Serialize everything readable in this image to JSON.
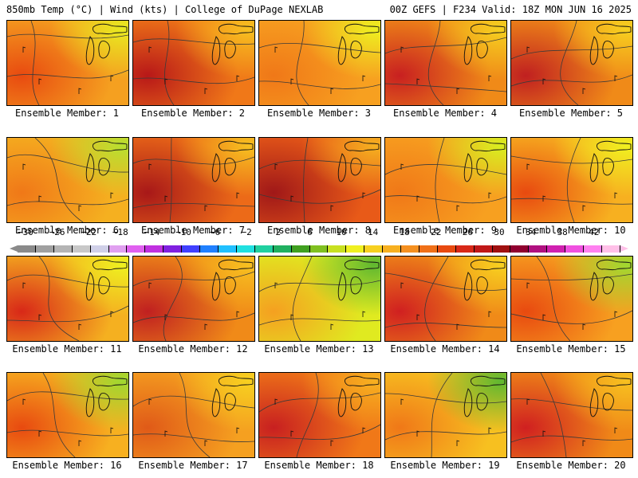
{
  "header": {
    "left": "850mb Temp (°C) | Wind (kts) | College of DuPage NEXLAB",
    "right": "00Z GEFS | F234 Valid: 18Z MON JUN 16 2025"
  },
  "panel_label_prefix": "Ensemble Member: ",
  "members": [
    {
      "label": "Ensemble Member: 1",
      "base": "#f5a020",
      "hot": "#e84a10",
      "cool": "#e8ea20"
    },
    {
      "label": "Ensemble Member: 2",
      "base": "#f07818",
      "hot": "#b81818",
      "cool": "#f7c020"
    },
    {
      "label": "Ensemble Member: 3",
      "base": "#f7a020",
      "hot": "#f07818",
      "cool": "#eef020"
    },
    {
      "label": "Ensemble Member: 4",
      "base": "#f08a18",
      "hot": "#c82020",
      "cool": "#f5d020"
    },
    {
      "label": "Ensemble Member: 5",
      "base": "#f08a18",
      "hot": "#c02020",
      "cool": "#f7d020"
    },
    {
      "label": "Ensemble Member: 6",
      "base": "#f5b020",
      "hot": "#f07818",
      "cool": "#b8e030"
    },
    {
      "label": "Ensemble Member: 7",
      "base": "#ec6a18",
      "hot": "#a81818",
      "cool": "#f7c020"
    },
    {
      "label": "Ensemble Member: 8",
      "base": "#e85a18",
      "hot": "#a01818",
      "cool": "#f5b020"
    },
    {
      "label": "Ensemble Member: 9",
      "base": "#f7a020",
      "hot": "#f07818",
      "cool": "#d8ee20"
    },
    {
      "label": "Ensemble Member: 10",
      "base": "#f7b020",
      "hot": "#e84a10",
      "cool": "#f0f020"
    },
    {
      "label": "Ensemble Member: 11",
      "base": "#f5b020",
      "hot": "#d82818",
      "cool": "#eef020"
    },
    {
      "label": "Ensemble Member: 12",
      "base": "#f08a18",
      "hot": "#c02020",
      "cool": "#f7c020"
    },
    {
      "label": "Ensemble Member: 13",
      "base": "#e0ea20",
      "hot": "#f5a020",
      "cool": "#60b830"
    },
    {
      "label": "Ensemble Member: 14",
      "base": "#f08a18",
      "hot": "#d02020",
      "cool": "#f7d020"
    },
    {
      "label": "Ensemble Member: 15",
      "base": "#f7a020",
      "hot": "#e84a10",
      "cool": "#a0d830"
    },
    {
      "label": "Ensemble Member: 16",
      "base": "#f7b020",
      "hot": "#e84a10",
      "cool": "#a0d830"
    },
    {
      "label": "Ensemble Member: 17",
      "base": "#f5a020",
      "hot": "#e05a18",
      "cool": "#f7d020"
    },
    {
      "label": "Ensemble Member: 18",
      "base": "#f07818",
      "hot": "#c82020",
      "cool": "#f7b020"
    },
    {
      "label": "Ensemble Member: 19",
      "base": "#f7c020",
      "hot": "#f07818",
      "cool": "#60b830"
    },
    {
      "label": "Ensemble Member: 20",
      "base": "#f08a18",
      "hot": "#d02020",
      "cool": "#f7c020"
    }
  ],
  "colorbar": {
    "labels": [
      "−30",
      "−26",
      "−22",
      "−18",
      "−14",
      "−10",
      "−6",
      "−2",
      "2",
      "6",
      "10",
      "14",
      "18",
      "22",
      "26",
      "30",
      "34",
      "38",
      "42"
    ],
    "colors": [
      "#8a8a8a",
      "#a0a0a0",
      "#b4b4b4",
      "#c8c8c8",
      "#d0d0e8",
      "#e0a0f0",
      "#e060f0",
      "#c030e0",
      "#8020e0",
      "#4040ff",
      "#2080ff",
      "#20c0ff",
      "#20e0e0",
      "#20d0a0",
      "#20b060",
      "#40a020",
      "#80c020",
      "#c8e020",
      "#f0f020",
      "#f7d020",
      "#f7b020",
      "#f59020",
      "#f07018",
      "#e84a10",
      "#d82818",
      "#c01818",
      "#a01010",
      "#900030",
      "#b01080",
      "#d020b0",
      "#f050e0",
      "#ff80f0",
      "#ffc0e8"
    ]
  }
}
